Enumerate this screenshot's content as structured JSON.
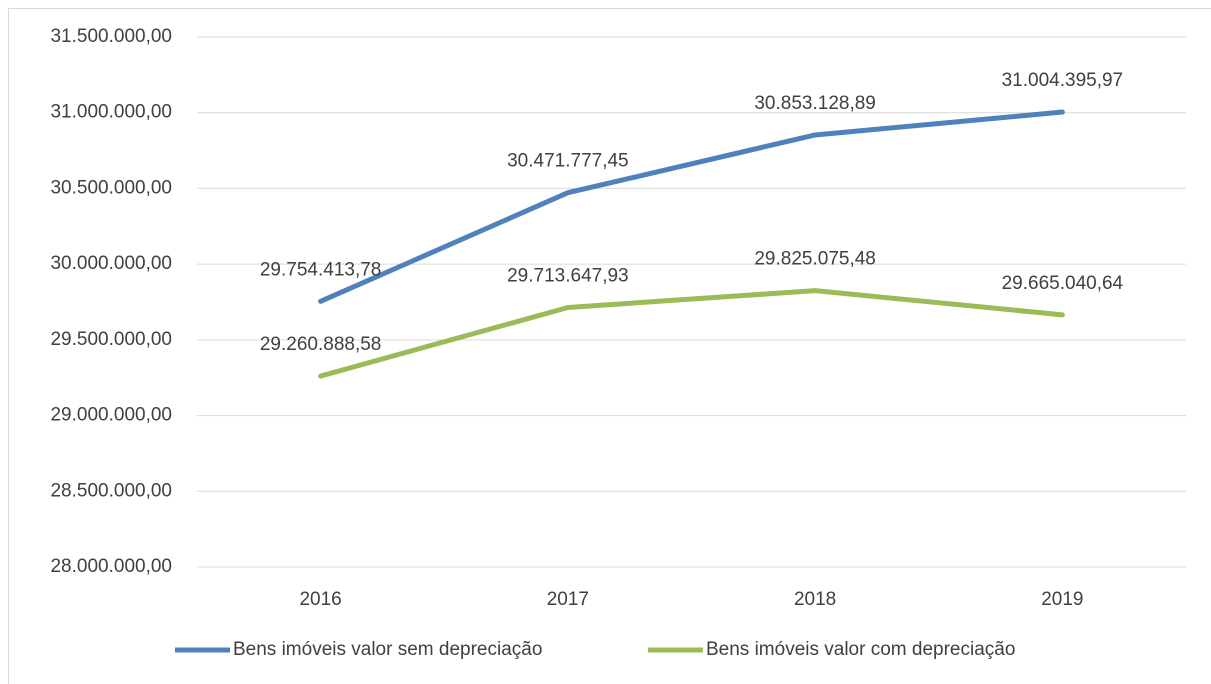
{
  "chart_data": {
    "type": "line",
    "categories": [
      "2016",
      "2017",
      "2018",
      "2019"
    ],
    "series": [
      {
        "name": "Bens imóveis valor sem depreciação",
        "color": "#4f81bd",
        "values": [
          29754413.78,
          30471777.45,
          30853128.89,
          31004395.97
        ],
        "value_labels": [
          "29.754.413,78",
          "30.471.777,45",
          "30.853.128,89",
          "31.004.395,97"
        ]
      },
      {
        "name": "Bens imóveis valor com depreciação",
        "color": "#9bbb59",
        "values": [
          29260888.58,
          29713647.93,
          29825075.48,
          29665040.64
        ],
        "value_labels": [
          "29.260.888,58",
          "29.713.647,93",
          "29.825.075,48",
          "29.665.040,64"
        ]
      }
    ],
    "ylim": [
      28000000,
      31500000
    ],
    "yticks": [
      {
        "value": 28000000,
        "label": "28.000.000,00"
      },
      {
        "value": 28500000,
        "label": "28.500.000,00"
      },
      {
        "value": 29000000,
        "label": "29.000.000,00"
      },
      {
        "value": 29500000,
        "label": "29.500.000,00"
      },
      {
        "value": 30000000,
        "label": "30.000.000,00"
      },
      {
        "value": 30500000,
        "label": "30.500.000,00"
      },
      {
        "value": 31000000,
        "label": "31.000.000,00"
      },
      {
        "value": 31500000,
        "label": "31.500.000,00"
      }
    ],
    "grid": true,
    "legend": "bottom"
  }
}
